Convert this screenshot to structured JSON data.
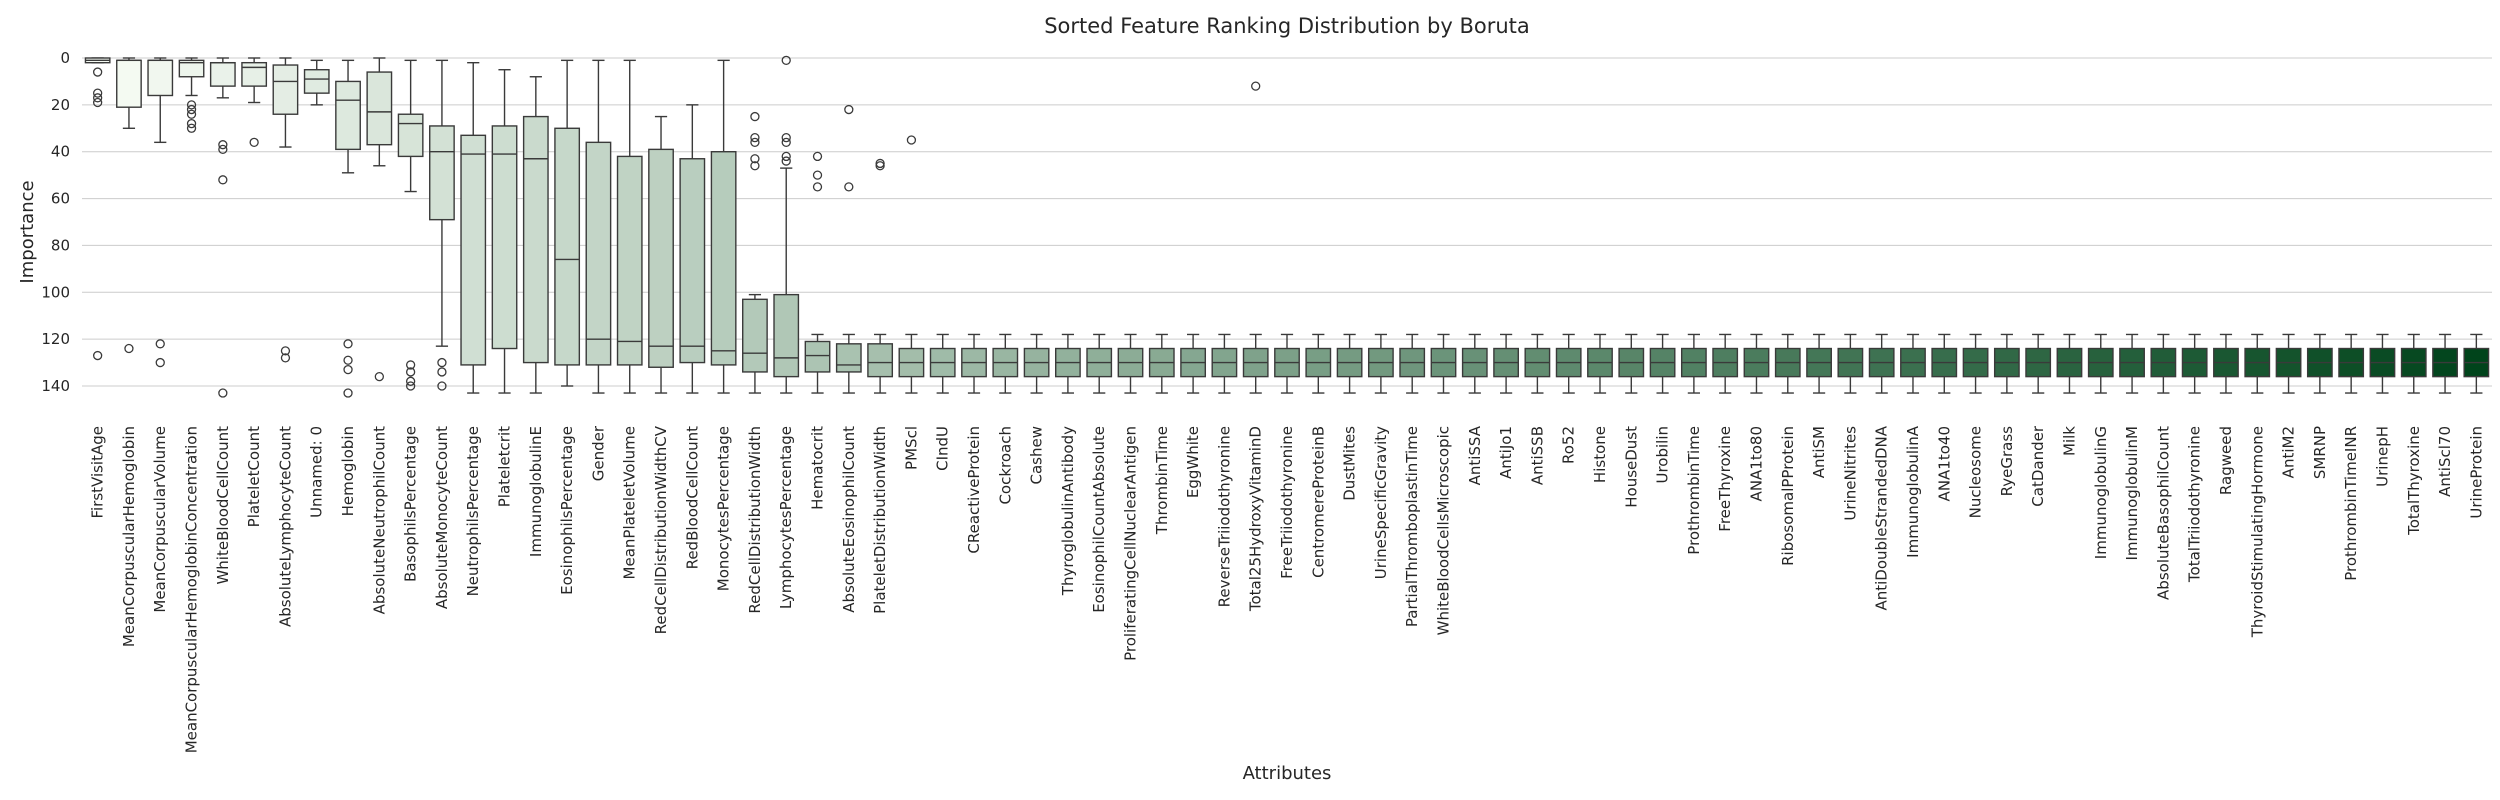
{
  "chart_data": {
    "type": "boxplot",
    "title": "Sorted Feature Ranking Distribution by Boruta",
    "xlabel": "Attributes",
    "ylabel": "Importance",
    "y_axis_inverted": true,
    "ylim": [
      0,
      150
    ],
    "yticks": [
      0,
      20,
      40,
      60,
      80,
      100,
      120,
      140
    ],
    "grid": "horizontal",
    "colormap": "Greens (light to dark, left to right)",
    "color_start": "#f7fcf5",
    "color_end": "#00441b",
    "categories": [
      "FirstVisitAge",
      "MeanCorpuscularHemoglobin",
      "MeanCorpuscularVolume",
      "MeanCorpuscularHemoglobinConcentration",
      "WhiteBloodCellCount",
      "PlateletCount",
      "AbsoluteLymphocyteCount",
      "Unnamed: 0",
      "Hemoglobin",
      "AbsoluteNeutrophilCount",
      "BasophilsPercentage",
      "AbsoluteMonocyteCount",
      "NeutrophilsPercentage",
      "Plateletcrit",
      "ImmunoglobulinE",
      "EosinophilsPercentage",
      "Gender",
      "MeanPlateletVolume",
      "RedCellDistributionWidthCV",
      "RedBloodCellCount",
      "MonocytesPercentage",
      "RedCellDistributionWidth",
      "LymphocytesPercentage",
      "Hematocrit",
      "AbsoluteEosinophilCount",
      "PlateletDistributionWidth",
      "PMScl",
      "CIndU",
      "CReactiveProtein",
      "Cockroach",
      "Cashew",
      "ThyroglobulinAntibody",
      "EosinophilCountAbsolute",
      "ProliferatingCellNuclearAntigen",
      "ThrombinTime",
      "EggWhite",
      "ReverseTriiodothyronine",
      "Total25HydroxyVitaminD",
      "FreeTriiodothyronine",
      "CentromereProteinB",
      "DustMites",
      "UrineSpecificGravity",
      "PartialThromboplastinTime",
      "WhiteBloodCellsMicroscopic",
      "AntiSSA",
      "AntiJo1",
      "AntiSSB",
      "Ro52",
      "Histone",
      "HouseDust",
      "Urobilin",
      "ProthrombinTime",
      "FreeThyroxine",
      "ANA1to80",
      "RibosomalPProtein",
      "AntiSM",
      "UrineNitrites",
      "AntiDoubleStrandedDNA",
      "ImmunoglobulinA",
      "ANA1to40",
      "Nucleosome",
      "RyeGrass",
      "CatDander",
      "Milk",
      "ImmunoglobulinG",
      "ImmunoglobulinM",
      "AbsoluteBasophilCount",
      "TotalTriiodothyronine",
      "Ragweed",
      "ThyroidStimulatingHormone",
      "AntiM2",
      "SMRNP",
      "ProthrombinTimeINR",
      "UrinepH",
      "TotalThyroxine",
      "AntiScl70",
      "UrineProtein"
    ],
    "boxes": [
      {
        "whislo": 0,
        "q1": 0,
        "med": 1,
        "q3": 2,
        "whishi": 2,
        "fliers": [
          6,
          15,
          17,
          19,
          127
        ]
      },
      {
        "whislo": 0,
        "q1": 1,
        "med": 1,
        "q3": 21,
        "whishi": 30,
        "fliers": [
          124
        ]
      },
      {
        "whislo": 0,
        "q1": 1,
        "med": 1,
        "q3": 16,
        "whishi": 36,
        "fliers": [
          122,
          130
        ]
      },
      {
        "whislo": 0,
        "q1": 1,
        "med": 2,
        "q3": 8,
        "whishi": 16,
        "fliers": [
          20,
          22,
          24,
          28,
          30
        ]
      },
      {
        "whislo": 0,
        "q1": 2,
        "med": 2,
        "q3": 12,
        "whishi": 17,
        "fliers": [
          37,
          39,
          52,
          143
        ]
      },
      {
        "whislo": 0,
        "q1": 2,
        "med": 4,
        "q3": 12,
        "whishi": 19,
        "fliers": [
          36
        ]
      },
      {
        "whislo": 0,
        "q1": 3,
        "med": 10,
        "q3": 24,
        "whishi": 38,
        "fliers": [
          125,
          128
        ]
      },
      {
        "whislo": 1,
        "q1": 5,
        "med": 9,
        "q3": 15,
        "whishi": 20,
        "fliers": []
      },
      {
        "whislo": 1,
        "q1": 10,
        "med": 18,
        "q3": 39,
        "whishi": 49,
        "fliers": [
          122,
          129,
          133,
          143
        ]
      },
      {
        "whislo": 0,
        "q1": 6,
        "med": 23,
        "q3": 37,
        "whishi": 46,
        "fliers": [
          136
        ]
      },
      {
        "whislo": 1,
        "q1": 24,
        "med": 28,
        "q3": 42,
        "whishi": 57,
        "fliers": [
          131,
          134,
          138,
          140
        ]
      },
      {
        "whislo": 1,
        "q1": 29,
        "med": 40,
        "q3": 69,
        "whishi": 123,
        "fliers": [
          130,
          134,
          140
        ]
      },
      {
        "whislo": 2,
        "q1": 33,
        "med": 41,
        "q3": 131,
        "whishi": 143,
        "fliers": []
      },
      {
        "whislo": 5,
        "q1": 29,
        "med": 41,
        "q3": 124,
        "whishi": 143,
        "fliers": []
      },
      {
        "whislo": 8,
        "q1": 25,
        "med": 43,
        "q3": 130,
        "whishi": 143,
        "fliers": []
      },
      {
        "whislo": 1,
        "q1": 30,
        "med": 86,
        "q3": 131,
        "whishi": 140,
        "fliers": []
      },
      {
        "whislo": 1,
        "q1": 36,
        "med": 120,
        "q3": 131,
        "whishi": 143,
        "fliers": []
      },
      {
        "whislo": 1,
        "q1": 42,
        "med": 121,
        "q3": 131,
        "whishi": 143,
        "fliers": []
      },
      {
        "whislo": 25,
        "q1": 39,
        "med": 123,
        "q3": 132,
        "whishi": 143,
        "fliers": []
      },
      {
        "whislo": 20,
        "q1": 43,
        "med": 123,
        "q3": 130,
        "whishi": 143,
        "fliers": []
      },
      {
        "whislo": 1,
        "q1": 40,
        "med": 125,
        "q3": 131,
        "whishi": 143,
        "fliers": []
      },
      {
        "whislo": 101,
        "q1": 103,
        "med": 126,
        "q3": 134,
        "whishi": 143,
        "fliers": [
          25,
          34,
          36,
          43,
          46
        ]
      },
      {
        "whislo": 47,
        "q1": 101,
        "med": 128,
        "q3": 136,
        "whishi": 143,
        "fliers": [
          1,
          34,
          36,
          42,
          44
        ]
      },
      {
        "whislo": 118,
        "q1": 121,
        "med": 127,
        "q3": 134,
        "whishi": 143,
        "fliers": [
          42,
          50,
          55
        ]
      },
      {
        "whislo": 118,
        "q1": 122,
        "med": 131,
        "q3": 134,
        "whishi": 143,
        "fliers": [
          22,
          55
        ]
      },
      {
        "whislo": 118,
        "q1": 122,
        "med": 130,
        "q3": 136,
        "whishi": 143,
        "fliers": [
          45,
          46
        ]
      },
      {
        "whislo": 118,
        "q1": 124,
        "med": 130,
        "q3": 136,
        "whishi": 143,
        "fliers": [
          35
        ]
      },
      {
        "whislo": 118,
        "q1": 124,
        "med": 130,
        "q3": 136,
        "whishi": 143,
        "fliers": []
      },
      {
        "whislo": 118,
        "q1": 124,
        "med": 130,
        "q3": 136,
        "whishi": 143,
        "fliers": []
      },
      {
        "whislo": 118,
        "q1": 124,
        "med": 130,
        "q3": 136,
        "whishi": 143,
        "fliers": []
      },
      {
        "whislo": 118,
        "q1": 124,
        "med": 130,
        "q3": 136,
        "whishi": 143,
        "fliers": []
      },
      {
        "whislo": 118,
        "q1": 124,
        "med": 130,
        "q3": 136,
        "whishi": 143,
        "fliers": []
      },
      {
        "whislo": 118,
        "q1": 124,
        "med": 130,
        "q3": 136,
        "whishi": 143,
        "fliers": []
      },
      {
        "whislo": 118,
        "q1": 124,
        "med": 130,
        "q3": 136,
        "whishi": 143,
        "fliers": []
      },
      {
        "whislo": 118,
        "q1": 124,
        "med": 130,
        "q3": 136,
        "whishi": 143,
        "fliers": []
      },
      {
        "whislo": 118,
        "q1": 124,
        "med": 130,
        "q3": 136,
        "whishi": 143,
        "fliers": []
      },
      {
        "whislo": 118,
        "q1": 124,
        "med": 130,
        "q3": 136,
        "whishi": 143,
        "fliers": []
      },
      {
        "whislo": 118,
        "q1": 124,
        "med": 130,
        "q3": 136,
        "whishi": 143,
        "fliers": [
          12
        ]
      },
      {
        "whislo": 118,
        "q1": 124,
        "med": 130,
        "q3": 136,
        "whishi": 143,
        "fliers": []
      },
      {
        "whislo": 118,
        "q1": 124,
        "med": 130,
        "q3": 136,
        "whishi": 143,
        "fliers": []
      },
      {
        "whislo": 118,
        "q1": 124,
        "med": 130,
        "q3": 136,
        "whishi": 143,
        "fliers": []
      },
      {
        "whislo": 118,
        "q1": 124,
        "med": 130,
        "q3": 136,
        "whishi": 143,
        "fliers": []
      },
      {
        "whislo": 118,
        "q1": 124,
        "med": 130,
        "q3": 136,
        "whishi": 143,
        "fliers": []
      },
      {
        "whislo": 118,
        "q1": 124,
        "med": 130,
        "q3": 136,
        "whishi": 143,
        "fliers": []
      },
      {
        "whislo": 118,
        "q1": 124,
        "med": 130,
        "q3": 136,
        "whishi": 143,
        "fliers": []
      },
      {
        "whislo": 118,
        "q1": 124,
        "med": 130,
        "q3": 136,
        "whishi": 143,
        "fliers": []
      },
      {
        "whislo": 118,
        "q1": 124,
        "med": 130,
        "q3": 136,
        "whishi": 143,
        "fliers": []
      },
      {
        "whislo": 118,
        "q1": 124,
        "med": 130,
        "q3": 136,
        "whishi": 143,
        "fliers": []
      },
      {
        "whislo": 118,
        "q1": 124,
        "med": 130,
        "q3": 136,
        "whishi": 143,
        "fliers": []
      },
      {
        "whislo": 118,
        "q1": 124,
        "med": 130,
        "q3": 136,
        "whishi": 143,
        "fliers": []
      },
      {
        "whislo": 118,
        "q1": 124,
        "med": 130,
        "q3": 136,
        "whishi": 143,
        "fliers": []
      },
      {
        "whislo": 118,
        "q1": 124,
        "med": 130,
        "q3": 136,
        "whishi": 143,
        "fliers": []
      },
      {
        "whislo": 118,
        "q1": 124,
        "med": 130,
        "q3": 136,
        "whishi": 143,
        "fliers": []
      },
      {
        "whislo": 118,
        "q1": 124,
        "med": 130,
        "q3": 136,
        "whishi": 143,
        "fliers": []
      },
      {
        "whislo": 118,
        "q1": 124,
        "med": 130,
        "q3": 136,
        "whishi": 143,
        "fliers": []
      },
      {
        "whislo": 118,
        "q1": 124,
        "med": 130,
        "q3": 136,
        "whishi": 143,
        "fliers": []
      },
      {
        "whislo": 118,
        "q1": 124,
        "med": 130,
        "q3": 136,
        "whishi": 143,
        "fliers": []
      },
      {
        "whislo": 118,
        "q1": 124,
        "med": 130,
        "q3": 136,
        "whishi": 143,
        "fliers": []
      },
      {
        "whislo": 118,
        "q1": 124,
        "med": 130,
        "q3": 136,
        "whishi": 143,
        "fliers": []
      },
      {
        "whislo": 118,
        "q1": 124,
        "med": 130,
        "q3": 136,
        "whishi": 143,
        "fliers": []
      },
      {
        "whislo": 118,
        "q1": 124,
        "med": 130,
        "q3": 136,
        "whishi": 143,
        "fliers": []
      },
      {
        "whislo": 118,
        "q1": 124,
        "med": 130,
        "q3": 136,
        "whishi": 143,
        "fliers": []
      },
      {
        "whislo": 118,
        "q1": 124,
        "med": 130,
        "q3": 136,
        "whishi": 143,
        "fliers": []
      },
      {
        "whislo": 118,
        "q1": 124,
        "med": 130,
        "q3": 136,
        "whishi": 143,
        "fliers": []
      },
      {
        "whislo": 118,
        "q1": 124,
        "med": 130,
        "q3": 136,
        "whishi": 143,
        "fliers": []
      },
      {
        "whislo": 118,
        "q1": 124,
        "med": 130,
        "q3": 136,
        "whishi": 143,
        "fliers": []
      },
      {
        "whislo": 118,
        "q1": 124,
        "med": 130,
        "q3": 136,
        "whishi": 143,
        "fliers": []
      },
      {
        "whislo": 118,
        "q1": 124,
        "med": 130,
        "q3": 136,
        "whishi": 143,
        "fliers": []
      },
      {
        "whislo": 118,
        "q1": 124,
        "med": 130,
        "q3": 136,
        "whishi": 143,
        "fliers": []
      },
      {
        "whislo": 118,
        "q1": 124,
        "med": 130,
        "q3": 136,
        "whishi": 143,
        "fliers": []
      },
      {
        "whislo": 118,
        "q1": 124,
        "med": 130,
        "q3": 136,
        "whishi": 143,
        "fliers": []
      },
      {
        "whislo": 118,
        "q1": 124,
        "med": 130,
        "q3": 136,
        "whishi": 143,
        "fliers": []
      },
      {
        "whislo": 118,
        "q1": 124,
        "med": 130,
        "q3": 136,
        "whishi": 143,
        "fliers": []
      },
      {
        "whislo": 118,
        "q1": 124,
        "med": 130,
        "q3": 136,
        "whishi": 143,
        "fliers": []
      },
      {
        "whislo": 118,
        "q1": 124,
        "med": 130,
        "q3": 136,
        "whishi": 143,
        "fliers": []
      },
      {
        "whislo": 118,
        "q1": 124,
        "med": 130,
        "q3": 136,
        "whishi": 143,
        "fliers": []
      },
      {
        "whislo": 118,
        "q1": 124,
        "med": 130,
        "q3": 136,
        "whishi": 143,
        "fliers": []
      }
    ]
  }
}
